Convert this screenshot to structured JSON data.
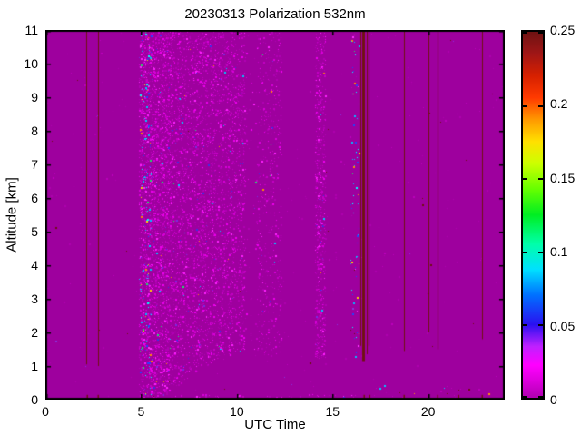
{
  "chart_data": {
    "type": "heatmap",
    "title": "20230313 Polarization 532nm",
    "xlabel": "UTC Time",
    "ylabel": "Altitude [km]",
    "xlim": [
      0,
      24
    ],
    "ylim": [
      0,
      11
    ],
    "xticks": [
      0,
      5,
      10,
      15,
      20
    ],
    "yticks": [
      0,
      1,
      2,
      3,
      4,
      5,
      6,
      7,
      8,
      9,
      10,
      11
    ],
    "grid": false,
    "background_color": "#9E009E",
    "axis_color": "#000000",
    "line_color": "#701212",
    "seed": 20230313,
    "colorbar": {
      "min": 0,
      "max": 0.25,
      "position": "right",
      "ticks": [
        0,
        0.05,
        0.1,
        0.15,
        0.2,
        0.25
      ],
      "tick_labels": [
        "0",
        "0.05",
        "0.1",
        "0.15",
        "0.2",
        "0.25"
      ],
      "gradient_stops": [
        [
          0.0,
          "#B000B0"
        ],
        [
          0.05,
          "#E000E0"
        ],
        [
          0.09,
          "#FF00FF"
        ],
        [
          0.14,
          "#C020FF"
        ],
        [
          0.2,
          "#2A10F0"
        ],
        [
          0.28,
          "#0070FF"
        ],
        [
          0.35,
          "#00E0FF"
        ],
        [
          0.42,
          "#00FFAA"
        ],
        [
          0.5,
          "#00EE22"
        ],
        [
          0.57,
          "#66FF00"
        ],
        [
          0.64,
          "#CCFF00"
        ],
        [
          0.7,
          "#FFE000"
        ],
        [
          0.76,
          "#FF9900"
        ],
        [
          0.82,
          "#FF3A00"
        ],
        [
          0.88,
          "#D62000"
        ],
        [
          0.94,
          "#A01616"
        ],
        [
          1.0,
          "#6E1212"
        ]
      ]
    },
    "hard_target_lines": [
      {
        "utc": 2.18,
        "alt_bottom": 1.05,
        "alt_top": 11,
        "w": 1
      },
      {
        "utc": 2.76,
        "alt_bottom": 1.0,
        "alt_top": 11,
        "w": 1
      },
      {
        "utc": 16.5,
        "alt_bottom": 1.6,
        "alt_top": 11,
        "w": 1
      },
      {
        "utc": 16.63,
        "alt_bottom": 1.15,
        "alt_top": 11,
        "w": 3
      },
      {
        "utc": 16.8,
        "alt_bottom": 1.35,
        "alt_top": 11,
        "w": 1
      },
      {
        "utc": 16.92,
        "alt_bottom": 1.6,
        "alt_top": 11,
        "w": 1
      },
      {
        "utc": 18.74,
        "alt_bottom": 1.45,
        "alt_top": 11,
        "w": 1
      },
      {
        "utc": 20.02,
        "alt_bottom": 2.0,
        "alt_top": 11,
        "w": 1
      },
      {
        "utc": 20.5,
        "alt_bottom": 1.5,
        "alt_top": 11,
        "w": 1
      },
      {
        "utc": 22.82,
        "alt_bottom": 1.8,
        "alt_top": 11,
        "w": 1
      }
    ],
    "bottom_stubs": {
      "utcs": [
        2.18,
        2.76,
        16.63,
        16.92,
        18.74,
        20.02,
        20.5,
        21.6,
        22.82
      ],
      "alt": [
        0,
        0.14
      ]
    },
    "lower_boundary": {
      "slope": 0.38,
      "start_utc": 5.8,
      "max_alt": 1.3
    },
    "noise_regions": [
      {
        "utc": [
          4.9,
          6.65
        ],
        "alt": [
          0,
          11
        ],
        "density": 0.3,
        "palette": "bright",
        "respect_boundary": true
      },
      {
        "utc": [
          4.95,
          5.55
        ],
        "alt": [
          0,
          11
        ],
        "density": 0.05,
        "palette": "colorful",
        "respect_boundary": true
      },
      {
        "utc": [
          6.65,
          10.45
        ],
        "alt": [
          0,
          11
        ],
        "density": 0.17,
        "palette": "bright",
        "respect_boundary": true
      },
      {
        "utc": [
          10.45,
          11.05
        ],
        "alt": [
          0,
          11
        ],
        "density": 0.015,
        "palette": "bright",
        "respect_boundary": true
      },
      {
        "utc": [
          11.05,
          12.35
        ],
        "alt": [
          0,
          11
        ],
        "density": 0.08,
        "palette": "bright",
        "respect_boundary": true
      },
      {
        "utc": [
          14.1,
          14.65
        ],
        "alt": [
          1.2,
          11
        ],
        "density": 0.22,
        "palette": "bright",
        "respect_boundary": false
      },
      {
        "utc": [
          15.95,
          16.4
        ],
        "alt": [
          1.0,
          11
        ],
        "density": 0.035,
        "palette": "colorful",
        "respect_boundary": false
      },
      {
        "utc": [
          4.95,
          16.6
        ],
        "alt": [
          0,
          0.14
        ],
        "density": 0.12,
        "palette": "bright",
        "respect_boundary": false
      },
      {
        "utc": [
          0,
          24
        ],
        "alt": [
          0,
          11
        ],
        "density": 0.0025,
        "palette": "faint",
        "respect_boundary": false
      },
      {
        "utc": [
          17.2,
          23.3
        ],
        "alt": [
          0,
          0.45
        ],
        "density": 0.02,
        "palette": "mixed",
        "respect_boundary": false
      }
    ],
    "noise_palettes": {
      "bright": [
        [
          "#B000B4",
          5
        ],
        [
          "#C400C4",
          4
        ],
        [
          "#D800D8",
          3
        ],
        [
          "#EE00EE",
          2
        ],
        [
          "#FF22FF",
          1.2
        ],
        [
          "#7B2BE2",
          0.25
        ],
        [
          "#3A30E8",
          0.2
        ],
        [
          "#00C8FF",
          0.1
        ],
        [
          "#FF8C00",
          0.05
        ],
        [
          "#20E070",
          0.05
        ]
      ],
      "colorful": [
        [
          "#00BFFF",
          3
        ],
        [
          "#2244FF",
          2.5
        ],
        [
          "#00FFFF",
          2
        ],
        [
          "#FFD400",
          1.2
        ],
        [
          "#22DD66",
          1
        ],
        [
          "#FF8C00",
          0.6
        ],
        [
          "#FF30FF",
          0.8
        ]
      ],
      "faint": [
        [
          "#AE00AE",
          3
        ],
        [
          "#BC00BC",
          1
        ],
        [
          "#6E0F12",
          0.4
        ],
        [
          "#8833DD",
          0.3
        ]
      ],
      "mixed": [
        [
          "#BC00BC",
          3
        ],
        [
          "#6E0F12",
          2
        ],
        [
          "#00C8FF",
          0.7
        ],
        [
          "#FF9900",
          0.5
        ],
        [
          "#D800D8",
          1
        ]
      ]
    }
  }
}
